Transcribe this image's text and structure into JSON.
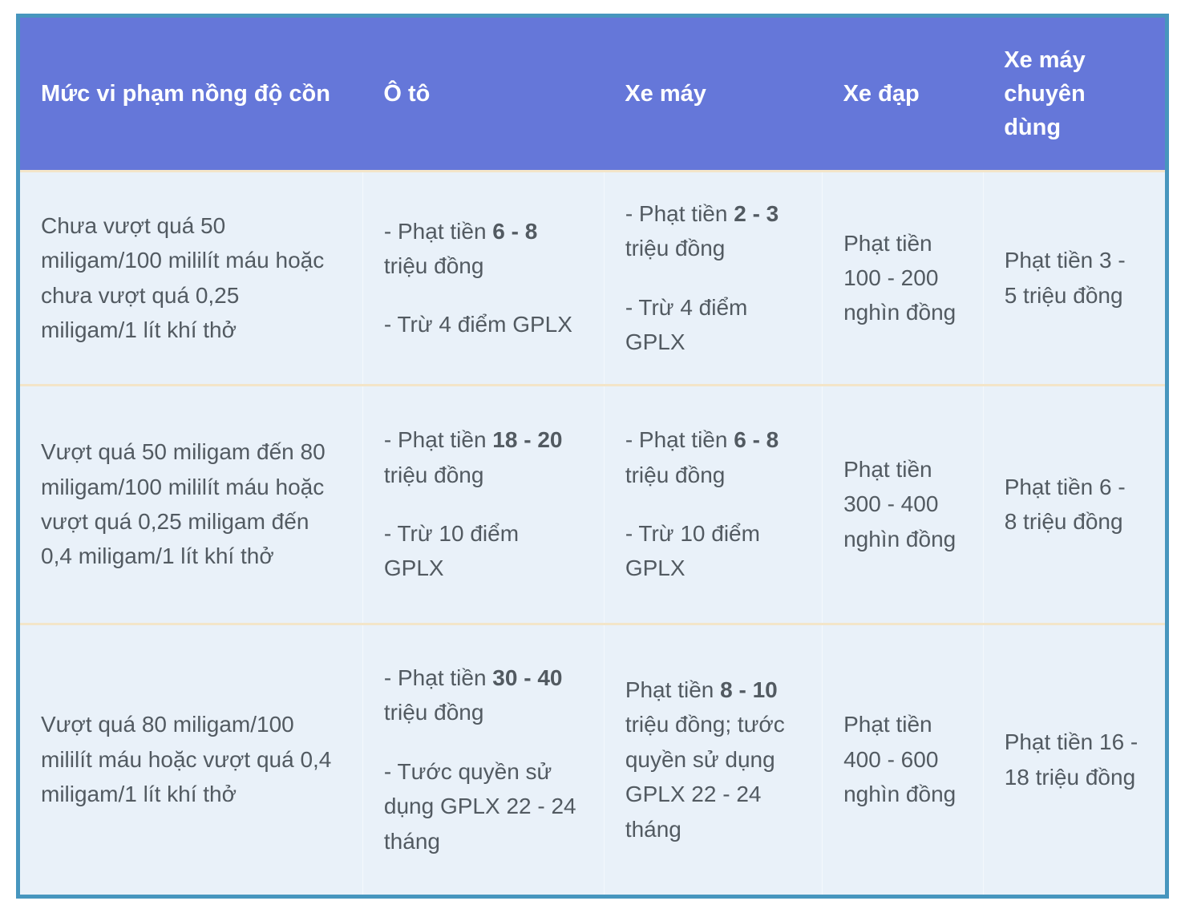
{
  "colors": {
    "header_bg": "#6577d9",
    "header_text": "#ffffff",
    "body_bg": "#e9f1f9",
    "table_border": "#4796be",
    "row_divider": "#f3e5c9",
    "body_text": "#525a61"
  },
  "table": {
    "headers": [
      {
        "key": "violation-level",
        "label": "Mức vi phạm nồng độ cồn"
      },
      {
        "key": "o-to",
        "label": "Ô tô"
      },
      {
        "key": "xe-may",
        "label": "Xe máy"
      },
      {
        "key": "xe-dap",
        "label": "Xe đạp"
      },
      {
        "key": "xe-may-chuyen-dung",
        "label": "Xe máy chuyên dùng"
      }
    ],
    "rows": [
      {
        "cells": [
          [
            [
              {
                "t": "Chưa vượt quá 50 miligam/100 mililít máu hoặc chưa vượt quá 0,25 miligam/1 lít khí thở"
              }
            ]
          ],
          [
            [
              {
                "t": "- Phạt tiền "
              },
              {
                "t": "6 - 8",
                "b": true
              },
              {
                "t": " triệu đồng"
              }
            ],
            [
              {
                "t": "- Trừ 4 điểm GPLX"
              }
            ]
          ],
          [
            [
              {
                "t": "- Phạt tiền "
              },
              {
                "t": "2 - 3",
                "b": true
              },
              {
                "t": " triệu đồng"
              }
            ],
            [
              {
                "t": "- Trừ 4 điểm GPLX"
              }
            ]
          ],
          [
            [
              {
                "t": "Phạt tiền 100 - 200 nghìn đồng"
              }
            ]
          ],
          [
            [
              {
                "t": "Phạt tiền 3 - 5 triệu đồng"
              }
            ]
          ]
        ]
      },
      {
        "cells": [
          [
            [
              {
                "t": "Vượt quá 50 miligam đến 80 miligam/100 mililít máu hoặc vượt quá 0,25 miligam đến 0,4 miligam/1 lít khí thở"
              }
            ]
          ],
          [
            [
              {
                "t": "- Phạt tiền "
              },
              {
                "t": "18 - 20",
                "b": true
              },
              {
                "t": " triệu đồng"
              }
            ],
            [
              {
                "t": "- Trừ 10 điểm GPLX"
              }
            ]
          ],
          [
            [
              {
                "t": "- Phạt tiền "
              },
              {
                "t": "6 - 8",
                "b": true
              },
              {
                "t": " triệu đồng"
              }
            ],
            [
              {
                "t": "- Trừ 10 điểm GPLX"
              }
            ]
          ],
          [
            [
              {
                "t": "Phạt tiền 300 - 400 nghìn đồng"
              }
            ]
          ],
          [
            [
              {
                "t": "Phạt tiền 6 - 8 triệu đồng"
              }
            ]
          ]
        ]
      },
      {
        "cells": [
          [
            [
              {
                "t": "Vượt quá 80 miligam/100 mililít máu hoặc vượt quá 0,4 miligam/1 lít khí thở"
              }
            ]
          ],
          [
            [
              {
                "t": "- Phạt tiền "
              },
              {
                "t": "30 - 40",
                "b": true
              },
              {
                "t": " triệu đồng"
              }
            ],
            [
              {
                "t": "- Tước quyền sử dụng GPLX 22 - 24 tháng"
              }
            ]
          ],
          [
            [
              {
                "t": "Phạt tiền "
              },
              {
                "t": "8 - 10",
                "b": true
              },
              {
                "t": " triệu đồng; tước quyền sử dụng GPLX 22 - 24 tháng"
              }
            ]
          ],
          [
            [
              {
                "t": "Phạt tiền 400 - 600 nghìn đồng"
              }
            ]
          ],
          [
            [
              {
                "t": "Phạt tiền 16 - 18 triệu đồng"
              }
            ]
          ]
        ]
      }
    ]
  }
}
